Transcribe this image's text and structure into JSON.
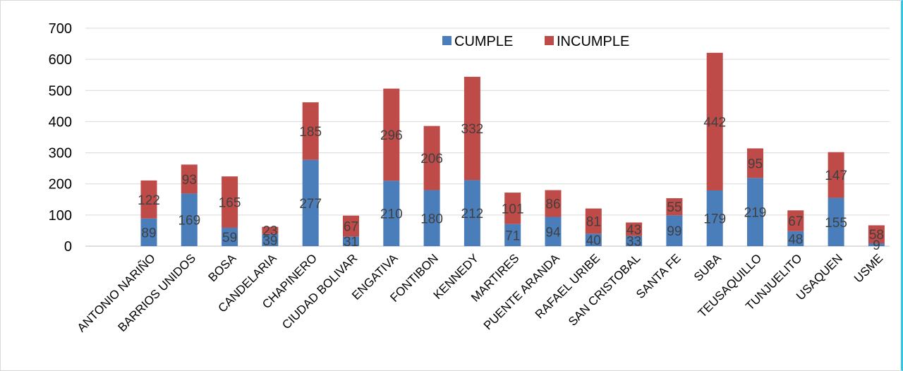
{
  "chart_data": {
    "type": "bar",
    "stacked": true,
    "title": "",
    "xlabel": "",
    "ylabel": "",
    "ylim": [
      0,
      700
    ],
    "yticks": [
      0,
      100,
      200,
      300,
      400,
      500,
      600,
      700
    ],
    "grid": true,
    "legend_position": "top-center",
    "categories": [
      "ANTONIO NARIÑO",
      "BARRIOS UNIDOS",
      "BOSA",
      "CANDELARIA",
      "CHAPINERO",
      "CIUDAD BOLIVAR",
      "ENGATIVA",
      "FONTIBON",
      "KENNEDY",
      "MARTIRES",
      "PUENTE ARANDA",
      "RAFAEL URIBE",
      "SAN CRISTOBAL",
      "SANTA FE",
      "SUBA",
      "TEUSAQUILLO",
      "TUNJUELITO",
      "USAQUEN",
      "USME"
    ],
    "series": [
      {
        "name": "CUMPLE",
        "color": "#4a7ebb",
        "values": [
          89,
          169,
          59,
          39,
          277,
          31,
          210,
          180,
          212,
          71,
          94,
          40,
          33,
          99,
          179,
          219,
          48,
          155,
          9
        ]
      },
      {
        "name": "INCUMPLE",
        "color": "#be4b48",
        "values": [
          122,
          93,
          165,
          23,
          185,
          67,
          296,
          206,
          332,
          101,
          86,
          81,
          43,
          55,
          442,
          95,
          67,
          147,
          58
        ]
      }
    ]
  }
}
